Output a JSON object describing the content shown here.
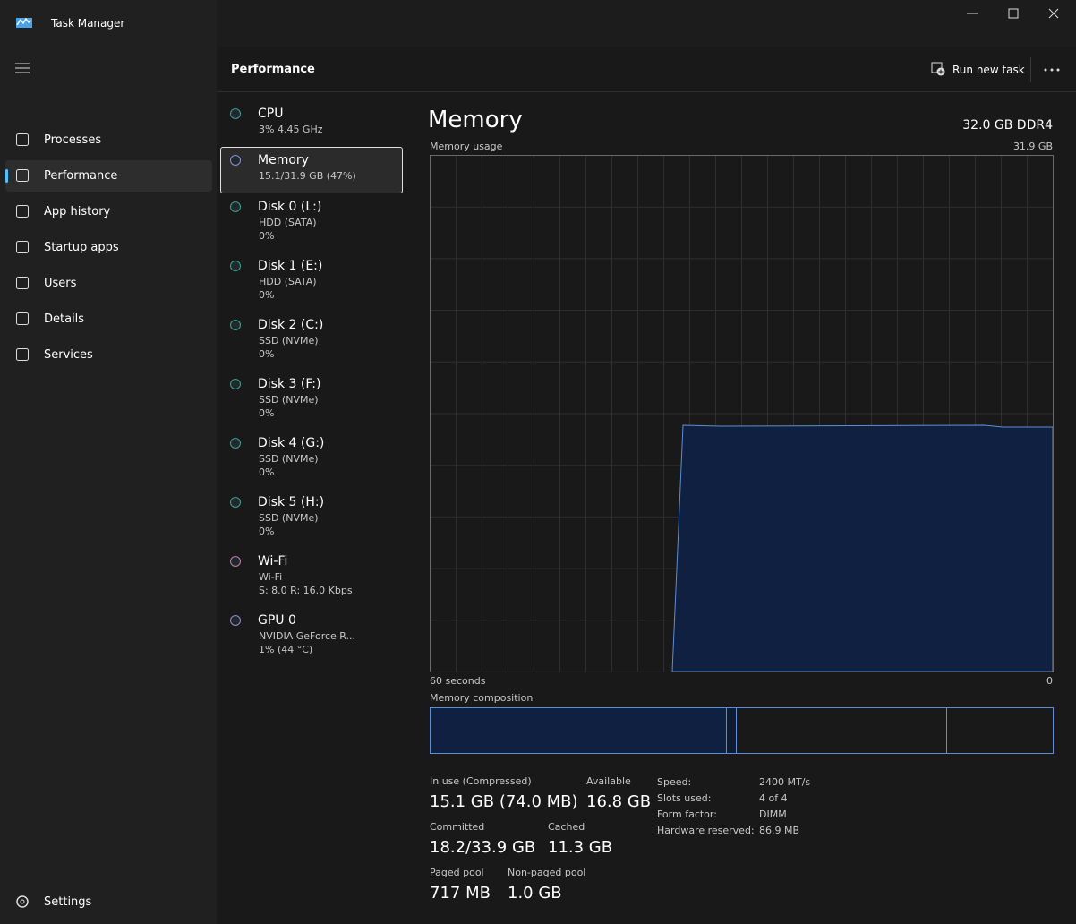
{
  "window": {
    "title": "Task Manager"
  },
  "nav": {
    "items": [
      "Processes",
      "Performance",
      "App history",
      "Startup apps",
      "Users",
      "Details",
      "Services"
    ],
    "selected": 1,
    "settings": "Settings"
  },
  "header": {
    "title": "Performance",
    "run_new_task": "Run new task"
  },
  "devices": [
    {
      "name": "CPU",
      "lines": [
        "3% 4.45 GHz"
      ],
      "color": "#3f9aa0"
    },
    {
      "name": "Memory",
      "lines": [
        "15.1/31.9 GB (47%)"
      ],
      "color": "#8a8fd6"
    },
    {
      "name": "Disk 0 (L:)",
      "lines": [
        "HDD (SATA)",
        "0%"
      ],
      "color": "#3fa08a"
    },
    {
      "name": "Disk 1 (E:)",
      "lines": [
        "HDD (SATA)",
        "0%"
      ],
      "color": "#3fa08a"
    },
    {
      "name": "Disk 2 (C:)",
      "lines": [
        "SSD (NVMe)",
        "0%"
      ],
      "color": "#3fa08a"
    },
    {
      "name": "Disk 3 (F:)",
      "lines": [
        "SSD (NVMe)",
        "0%"
      ],
      "color": "#3fa08a"
    },
    {
      "name": "Disk 4 (G:)",
      "lines": [
        "SSD (NVMe)",
        "0%"
      ],
      "color": "#3fa08a"
    },
    {
      "name": "Disk 5 (H:)",
      "lines": [
        "SSD (NVMe)",
        "0%"
      ],
      "color": "#3fa08a"
    },
    {
      "name": "Wi-Fi",
      "lines": [
        "Wi-Fi",
        "S: 8.0 R: 16.0 Kbps"
      ],
      "color": "#c678a8"
    },
    {
      "name": "GPU 0",
      "lines": [
        "NVIDIA GeForce R...",
        "1% (44 °C)"
      ],
      "color": "#a283c8"
    }
  ],
  "selected_device": 1,
  "detail": {
    "title": "Memory",
    "spec": "32.0 GB DDR4",
    "graph": {
      "label": "Memory usage",
      "max": "31.9 GB",
      "left": "60 seconds",
      "right": "0"
    },
    "composition": "Memory composition",
    "stats": [
      {
        "label": "In use (Compressed)",
        "value": "15.1 GB (74.0 MB)"
      },
      {
        "label": "Available",
        "value": "16.8 GB"
      },
      {
        "label": "Committed",
        "value": "18.2/33.9 GB"
      },
      {
        "label": "Cached",
        "value": "11.3 GB"
      },
      {
        "label": "Paged pool",
        "value": "717 MB"
      },
      {
        "label": "Non-paged pool",
        "value": "1.0 GB"
      }
    ],
    "props": [
      {
        "label": "Speed:",
        "value": "2400 MT/s"
      },
      {
        "label": "Slots used:",
        "value": "4 of 4"
      },
      {
        "label": "Form factor:",
        "value": "DIMM"
      },
      {
        "label": "Hardware reserved:",
        "value": "86.9 MB"
      }
    ]
  }
}
